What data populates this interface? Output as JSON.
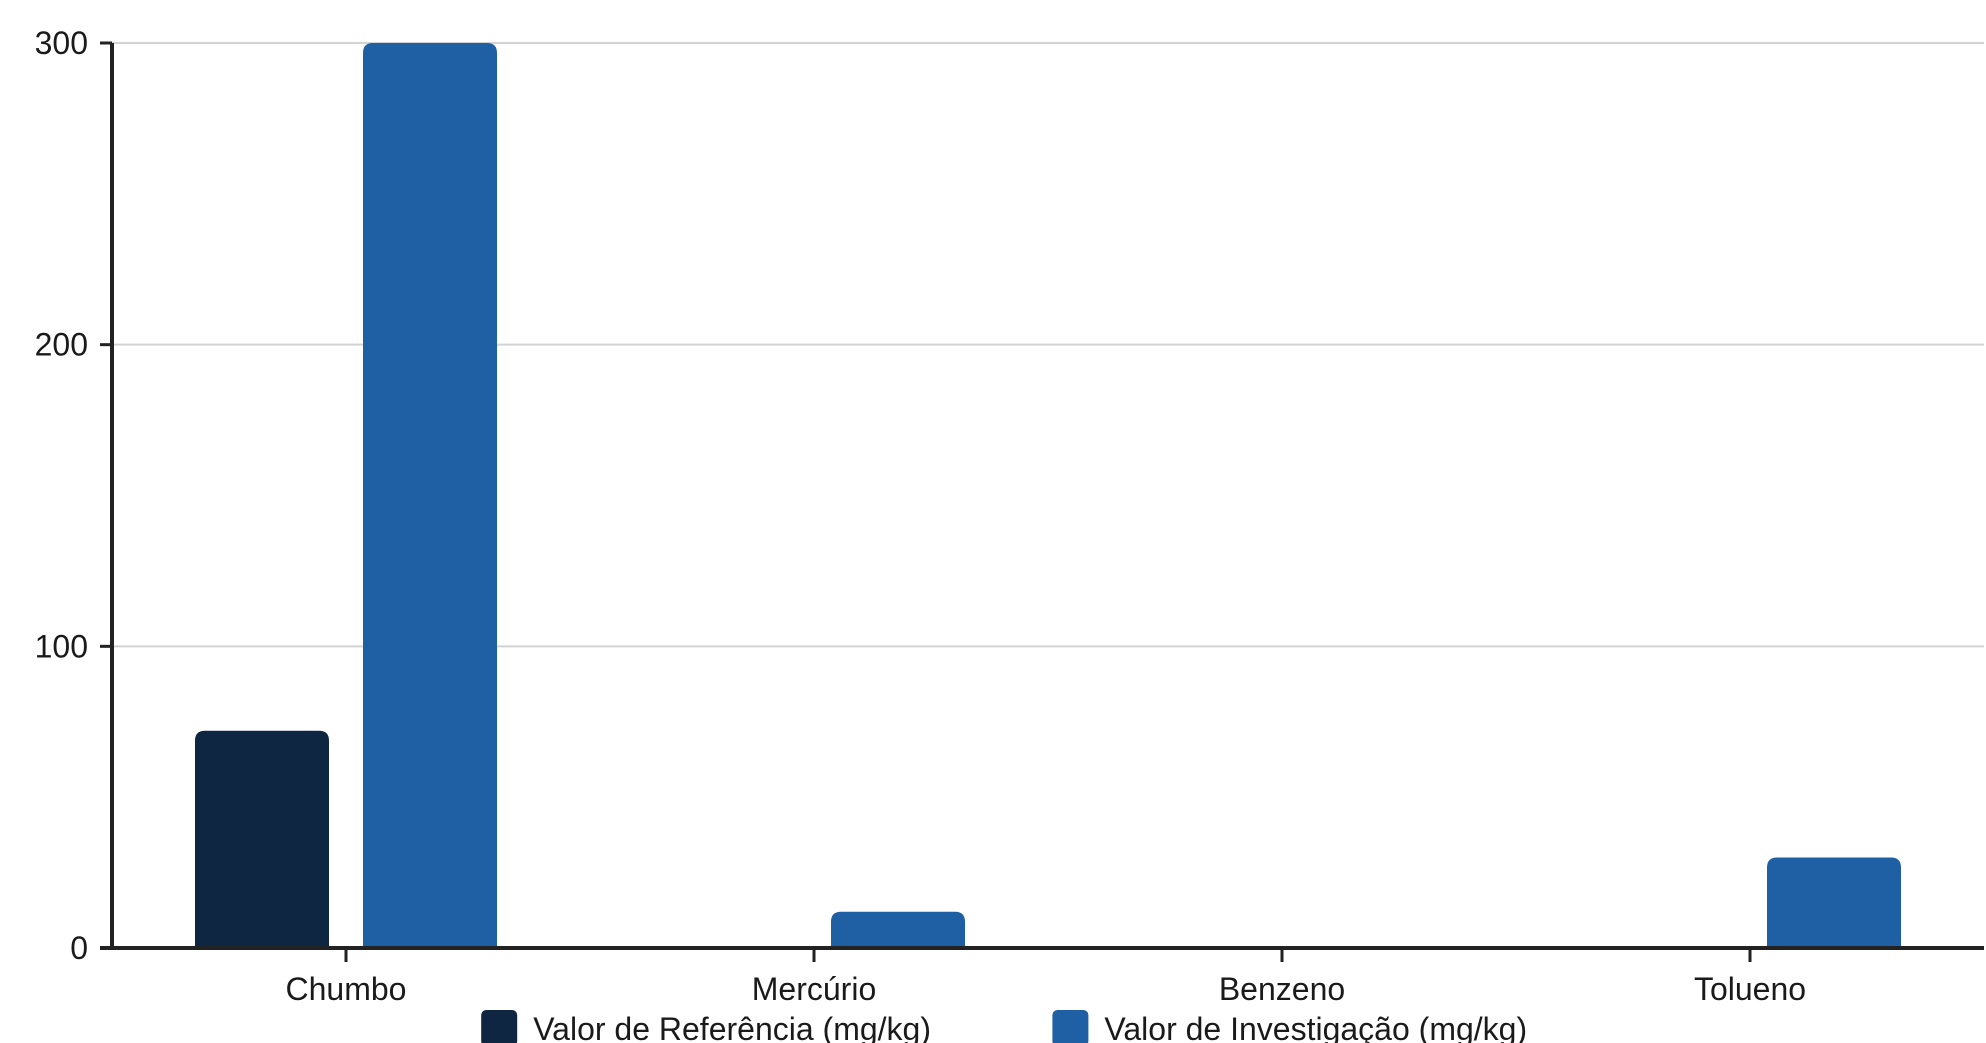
{
  "chart_data": {
    "type": "bar",
    "title": "",
    "xlabel": "",
    "ylabel": "",
    "categories": [
      "Chumbo",
      "Mercúrio",
      "Benzeno",
      "Tolueno"
    ],
    "series": [
      {
        "name": "Valor de Referência (mg/kg)",
        "color": "#0e2642",
        "values": [
          72,
          0,
          0,
          0
        ]
      },
      {
        "name": "Valor de Investigação (mg/kg)",
        "color": "#1f5fa3",
        "values": [
          300,
          12,
          0.03,
          30
        ]
      }
    ],
    "ylim": [
      0,
      300
    ],
    "yticks": [
      0,
      100,
      200,
      300
    ],
    "ytick_labels": [
      "0",
      "100",
      "200",
      "300"
    ],
    "grid": true,
    "legend_position": "bottom"
  }
}
